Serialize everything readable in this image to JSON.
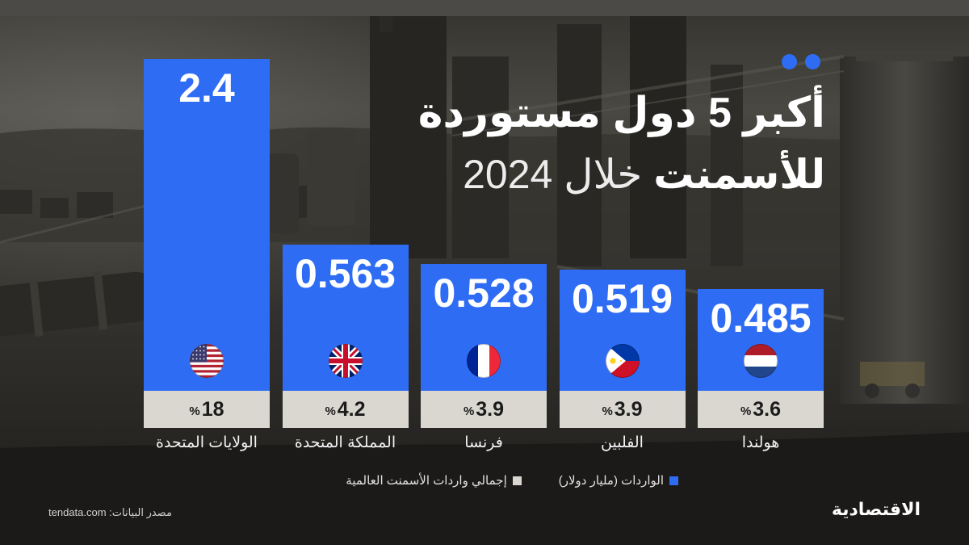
{
  "colors": {
    "accent_blue": "#2e6cf4",
    "share_box": "#d9d7d0",
    "background": "#2f2e2b"
  },
  "decor": {
    "dots": [
      "#2e6cf4",
      "#2e6cf4"
    ]
  },
  "chart_data": {
    "type": "bar",
    "title": {
      "line1": "أكبر 5 دول مستوردة",
      "line2_bold": "للأسمنت",
      "line2_light": "خلال 2024"
    },
    "categories": [
      "الولايات المتحدة",
      "المملكة المتحدة",
      "فرنسا",
      "الفلبين",
      "هولندا"
    ],
    "flags": [
      "us-flag-icon",
      "uk-flag-icon",
      "france-flag-icon",
      "philippines-flag-icon",
      "netherlands-flag-icon"
    ],
    "series": [
      {
        "name": "الواردات (مليار دولار)",
        "values": [
          2.4,
          0.563,
          0.528,
          0.519,
          0.485
        ],
        "color": "#2e6cf4"
      },
      {
        "name": "إجمالي واردات الأسمنت العالمية",
        "values": [
          18,
          4.2,
          3.9,
          3.9,
          3.6
        ],
        "unit": "%",
        "color": "#d9d7d0"
      }
    ],
    "grid": false,
    "legend_position": "bottom"
  },
  "source": "مصدر البيانات: tendata.com",
  "logo": "الاقتصادية"
}
